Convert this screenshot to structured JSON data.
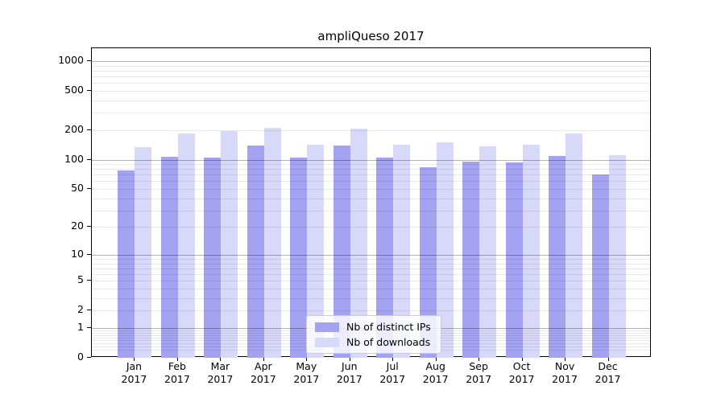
{
  "chart_data": {
    "type": "bar",
    "title": "ampliQueso 2017",
    "categories": [
      "Jan",
      "Feb",
      "Mar",
      "Apr",
      "May",
      "Jun",
      "Jul",
      "Aug",
      "Sep",
      "Oct",
      "Nov",
      "Dec"
    ],
    "year_label": "2017",
    "series": [
      {
        "name": "Nb of distinct IPs",
        "color": "#a3a3f2",
        "values": [
          78,
          106,
          105,
          138,
          105,
          139,
          105,
          83,
          96,
          94,
          109,
          71
        ]
      },
      {
        "name": "Nb of downloads",
        "color": "#d8d8f9",
        "values": [
          133,
          185,
          196,
          210,
          141,
          208,
          141,
          150,
          137,
          141,
          183,
          112
        ]
      }
    ],
    "yscale": "log1p",
    "ylim": [
      0,
      1350
    ],
    "yticks": [
      0,
      1,
      2,
      5,
      10,
      20,
      50,
      100,
      200,
      500,
      1000
    ],
    "grid": {
      "major_lines": [
        1,
        10,
        100,
        1000
      ],
      "minor_bases": [
        2,
        3,
        4,
        5,
        6,
        7,
        8,
        9
      ],
      "minor_decades": [
        -1,
        0,
        1,
        2
      ],
      "grid_above_bars": true
    },
    "legend_position": "lower center",
    "xlabel": "",
    "ylabel": ""
  }
}
